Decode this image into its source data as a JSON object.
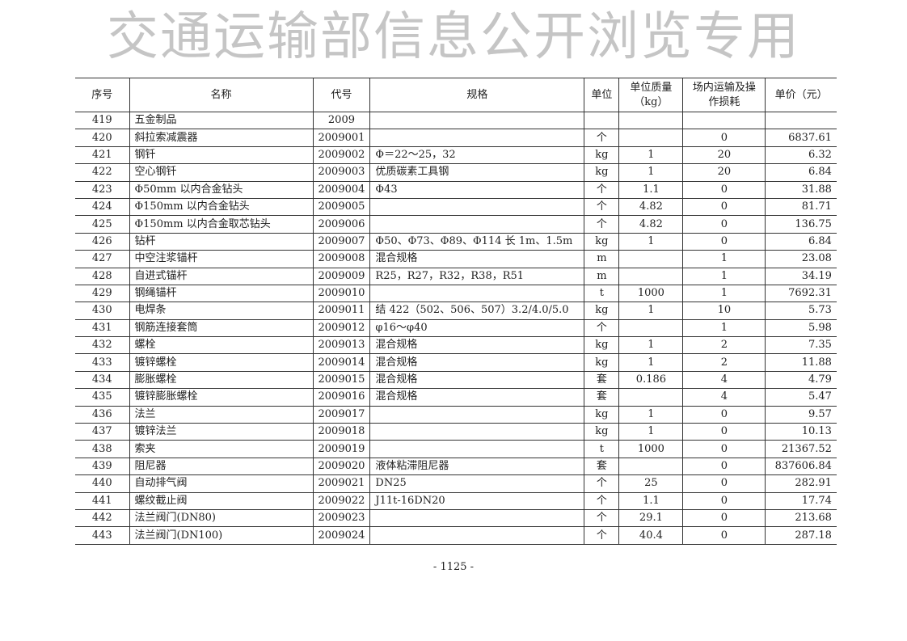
{
  "table": {
    "headers": [
      "序号",
      "名称",
      "代号",
      "规格",
      "单位",
      "单位质量（kg）",
      "场内运输及操作损耗",
      "单价（元）"
    ],
    "rows": [
      [
        "419",
        "五金制品",
        "2009",
        "",
        "",
        "",
        "",
        ""
      ],
      [
        "420",
        "斜拉索减震器",
        "2009001",
        "",
        "个",
        "",
        "0",
        "6837.61"
      ],
      [
        "421",
        "钢钎",
        "2009002",
        "Φ＝22～25，32",
        "kg",
        "1",
        "20",
        "6.32"
      ],
      [
        "422",
        "空心钢钎",
        "2009003",
        "优质碳素工具钢",
        "kg",
        "1",
        "20",
        "6.84"
      ],
      [
        "423",
        "Φ50mm 以内合金钻头",
        "2009004",
        "Φ43",
        "个",
        "1.1",
        "0",
        "31.88"
      ],
      [
        "424",
        "Φ150mm 以内合金钻头",
        "2009005",
        "",
        "个",
        "4.82",
        "0",
        "81.71"
      ],
      [
        "425",
        "Φ150mm 以内合金取芯钻头",
        "2009006",
        "",
        "个",
        "4.82",
        "0",
        "136.75"
      ],
      [
        "426",
        "钻杆",
        "2009007",
        "Φ50、Φ73、Φ89、Φ114 长 1m、1.5m",
        "kg",
        "1",
        "0",
        "6.84"
      ],
      [
        "427",
        "中空注浆锚杆",
        "2009008",
        "混合规格",
        "m",
        "",
        "1",
        "23.08"
      ],
      [
        "428",
        "自进式锚杆",
        "2009009",
        "R25，R27，R32，R38，R51",
        "m",
        "",
        "1",
        "34.19"
      ],
      [
        "429",
        "钢绳锚杆",
        "2009010",
        "",
        "t",
        "1000",
        "1",
        "7692.31"
      ],
      [
        "430",
        "电焊条",
        "2009011",
        "结 422（502、506、507）3.2/4.0/5.0",
        "kg",
        "1",
        "10",
        "5.73"
      ],
      [
        "431",
        "钢筋连接套筒",
        "2009012",
        "φ16～φ40",
        "个",
        "",
        "1",
        "5.98"
      ],
      [
        "432",
        "螺栓",
        "2009013",
        "混合规格",
        "kg",
        "1",
        "2",
        "7.35"
      ],
      [
        "433",
        "镀锌螺栓",
        "2009014",
        "混合规格",
        "kg",
        "1",
        "2",
        "11.88"
      ],
      [
        "434",
        "膨胀螺栓",
        "2009015",
        "混合规格",
        "套",
        "0.186",
        "4",
        "4.79"
      ],
      [
        "435",
        "镀锌膨胀螺栓",
        "2009016",
        "混合规格",
        "套",
        "",
        "4",
        "5.47"
      ],
      [
        "436",
        "法兰",
        "2009017",
        "",
        "kg",
        "1",
        "0",
        "9.57"
      ],
      [
        "437",
        "镀锌法兰",
        "2009018",
        "",
        "kg",
        "1",
        "0",
        "10.13"
      ],
      [
        "438",
        "索夹",
        "2009019",
        "",
        "t",
        "1000",
        "0",
        "21367.52"
      ],
      [
        "439",
        "阻尼器",
        "2009020",
        "液体粘滞阻尼器",
        "套",
        "",
        "0",
        "837606.84"
      ],
      [
        "440",
        "自动排气阀",
        "2009021",
        "DN25",
        "个",
        "25",
        "0",
        "282.91"
      ],
      [
        "441",
        "螺纹截止阀",
        "2009022",
        "J11t-16DN20",
        "个",
        "1.1",
        "0",
        "17.74"
      ],
      [
        "442",
        "法兰阀门(DN80)",
        "2009023",
        "",
        "个",
        "29.1",
        "0",
        "213.68"
      ],
      [
        "443",
        "法兰阀门(DN100)",
        "2009024",
        "",
        "个",
        "40.4",
        "0",
        "287.18"
      ]
    ]
  },
  "page_number": "- 1125 -",
  "watermark": "交通运输部信息公开浏览专用"
}
